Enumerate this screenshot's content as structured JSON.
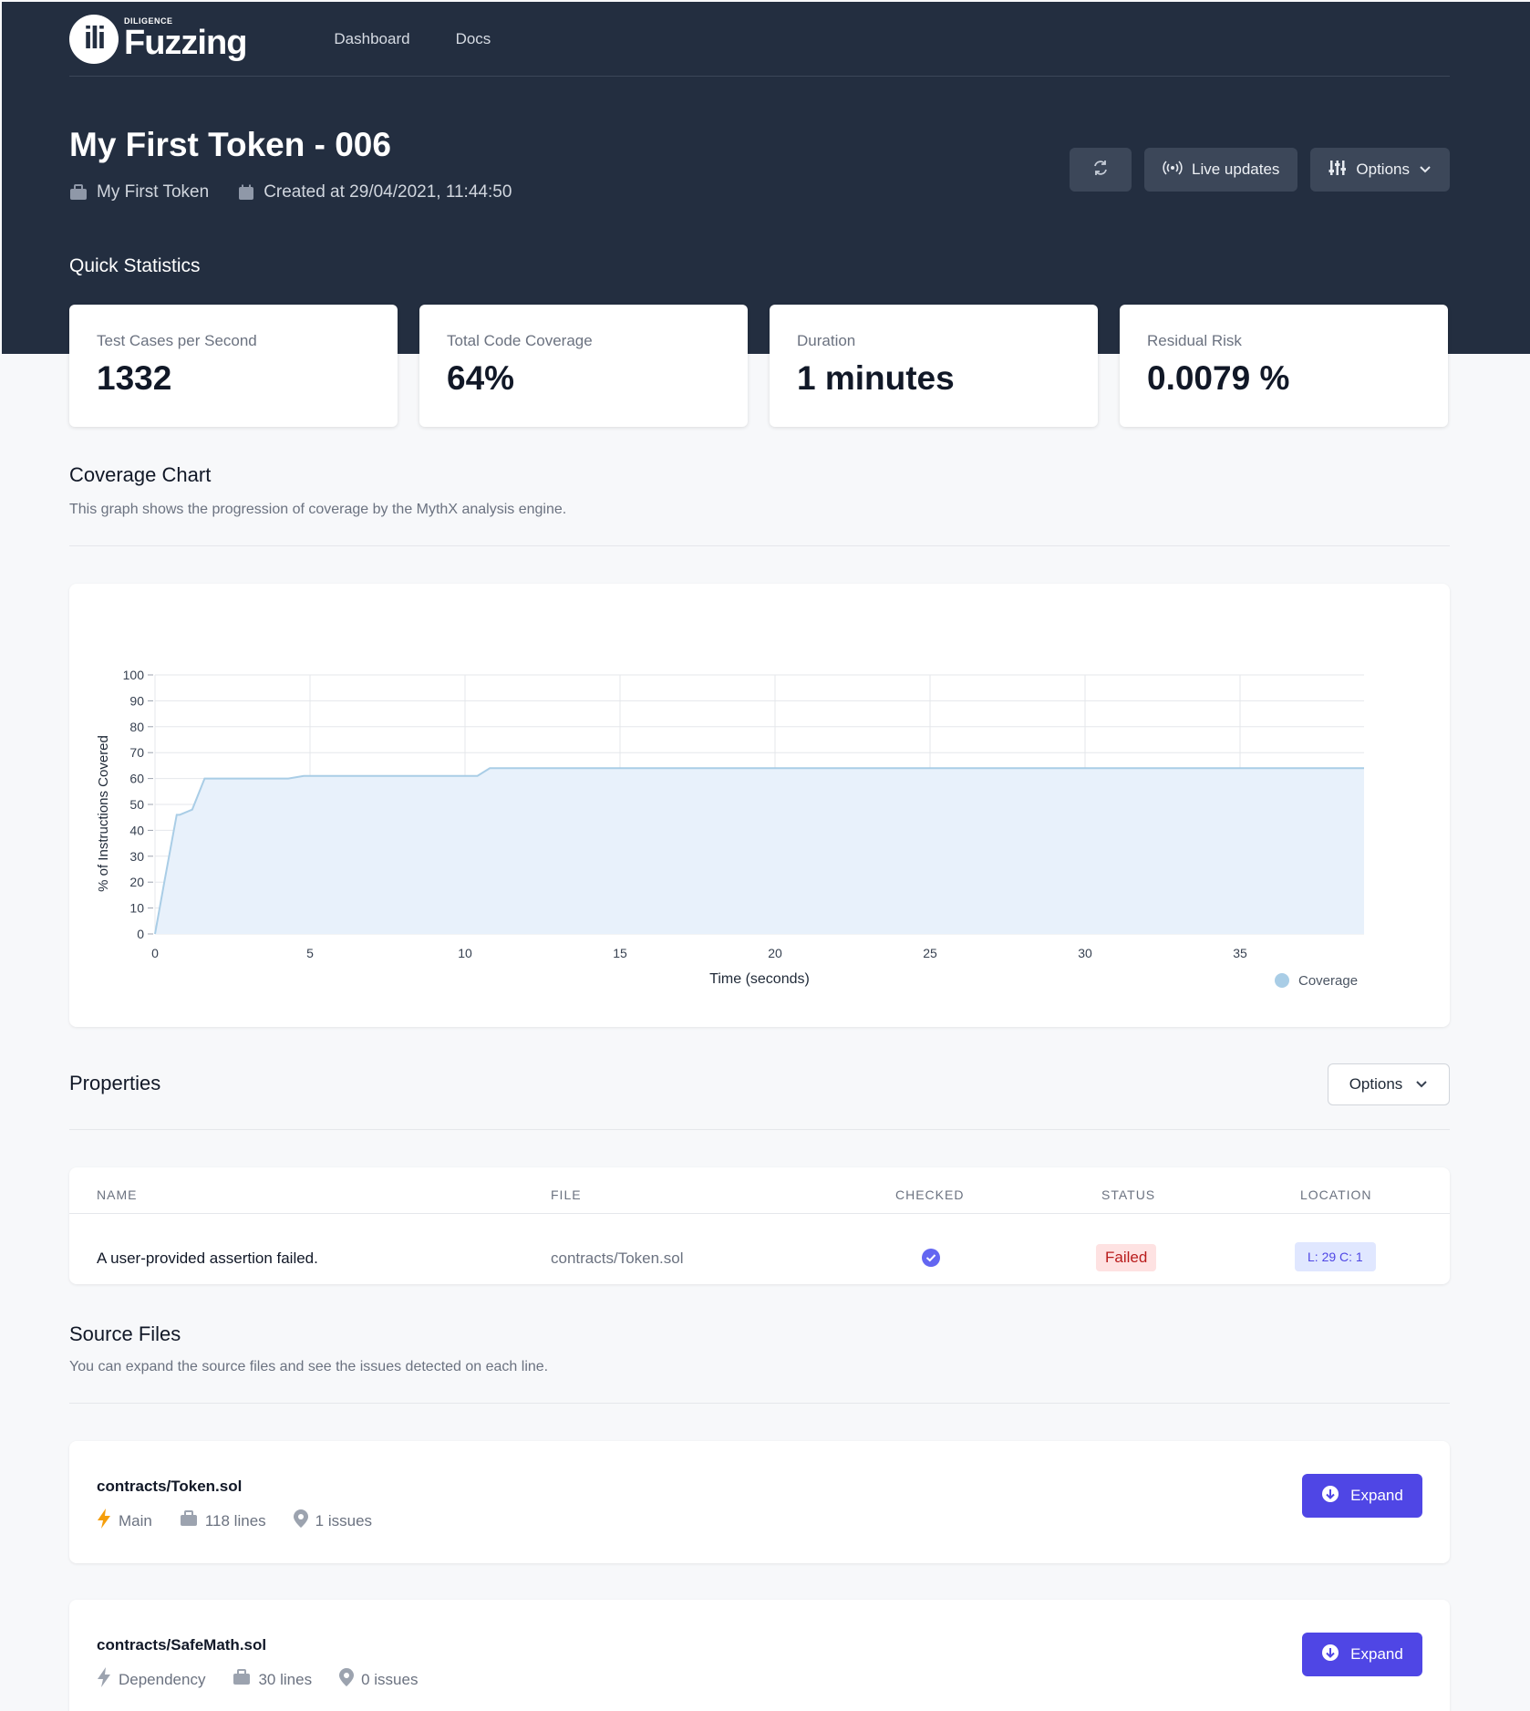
{
  "nav": {
    "logo_mark": "ili",
    "logo_small": "DILIGENCE",
    "logo_big": "Fuzzing",
    "links": [
      "Dashboard",
      "Docs"
    ]
  },
  "header": {
    "title": "My First Token - 006",
    "project": "My First Token",
    "created": "Created at 29/04/2021, 11:44:50",
    "live_updates": "Live updates",
    "options": "Options"
  },
  "quick_stats": {
    "title": "Quick Statistics",
    "cards": [
      {
        "label": "Test Cases per Second",
        "value": "1332"
      },
      {
        "label": "Total Code Coverage",
        "value": "64%"
      },
      {
        "label": "Duration",
        "value": "1 minutes"
      },
      {
        "label": "Residual Risk",
        "value": "0.0079 %"
      }
    ]
  },
  "coverage": {
    "title": "Coverage Chart",
    "description": "This graph shows the progression of coverage by the MythX analysis engine."
  },
  "chart_data": {
    "type": "area",
    "xlabel": "Time (seconds)",
    "ylabel": "% of Instructions Covered",
    "xlim": [
      0,
      39
    ],
    "ylim": [
      0,
      100
    ],
    "xticks": [
      0,
      5,
      10,
      15,
      20,
      25,
      30,
      35
    ],
    "yticks": [
      0,
      10,
      20,
      30,
      40,
      50,
      60,
      70,
      80,
      90,
      100
    ],
    "grid": true,
    "legend_position": "bottom-right",
    "series": [
      {
        "name": "Coverage",
        "color": "#a9cde6",
        "fill": "#e8f1fb",
        "x": [
          0,
          0.3,
          0.7,
          0.8,
          1.2,
          1.6,
          4.3,
          4.8,
          10.4,
          10.8,
          39
        ],
        "y": [
          0,
          20,
          46,
          46,
          48,
          60,
          60,
          61,
          61,
          64,
          64
        ]
      }
    ]
  },
  "properties": {
    "title": "Properties",
    "options": "Options",
    "headers": [
      "Name",
      "File",
      "Checked",
      "Status",
      "Location"
    ],
    "rows": [
      {
        "name": "A user-provided assertion failed.",
        "file": "contracts/Token.sol",
        "status": "Failed",
        "location": "L: 29 C: 1"
      }
    ]
  },
  "source_files": {
    "title": "Source Files",
    "description": "You can expand the source files and see the issues detected on each line.",
    "files": [
      {
        "name": "contracts/Token.sol",
        "type": "Main",
        "lines": "118 lines",
        "issues": "1 issues",
        "expand": "Expand"
      },
      {
        "name": "contracts/SafeMath.sol",
        "type": "Dependency",
        "lines": "30 lines",
        "issues": "0 issues",
        "expand": "Expand"
      }
    ]
  },
  "colors": {
    "header_bg": "#232e40",
    "accent": "#4f46e5",
    "main_bolt": "#f59e0b",
    "dependency_bolt": "#9ca3af"
  }
}
